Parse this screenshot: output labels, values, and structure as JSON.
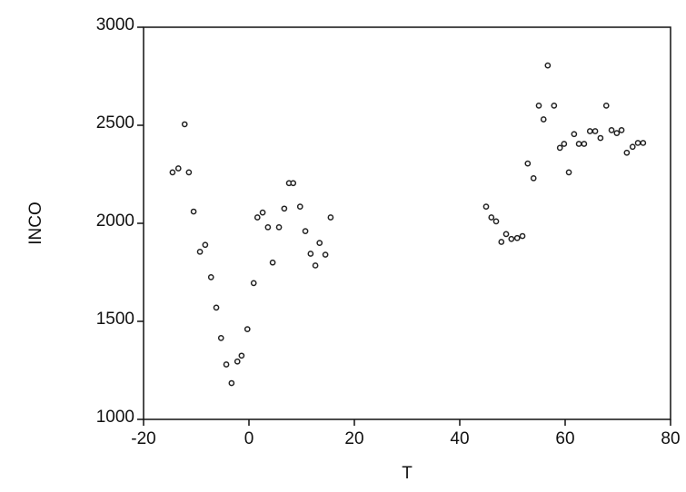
{
  "chart_data": {
    "type": "scatter",
    "x_label": "T",
    "y_label": "INCO",
    "xlim": [
      -20,
      80
    ],
    "xticks": [
      -20,
      0,
      20,
      40,
      60,
      80
    ],
    "ylim": [
      1000,
      3000
    ],
    "yticks": [
      1000,
      1500,
      2000,
      2500,
      3000
    ],
    "color": "#222222",
    "x": [
      -14.5,
      -13.4,
      -12.2,
      -11.4,
      -10.5,
      -9.3,
      -8.3,
      -7.2,
      -6.2,
      -5.3,
      -4.3,
      -3.3,
      -2.2,
      -1.4,
      -0.3,
      0.9,
      1.6,
      2.6,
      3.6,
      4.5,
      5.7,
      6.7,
      7.6,
      8.4,
      9.7,
      10.7,
      11.7,
      12.6,
      13.4,
      14.5,
      15.5,
      45.0,
      46.0,
      46.9,
      47.9,
      48.8,
      49.8,
      50.9,
      51.9,
      52.9,
      54.0,
      55.0,
      55.9,
      56.7,
      57.9,
      59.0,
      59.8,
      60.7,
      61.7,
      62.6,
      63.6,
      64.7,
      65.7,
      66.7,
      67.8,
      68.8,
      69.8,
      70.7,
      71.7,
      72.8,
      73.8,
      74.8
    ],
    "y": [
      2260,
      2280,
      2505,
      2260,
      2060,
      1855,
      1890,
      1725,
      1570,
      1415,
      1280,
      1185,
      1295,
      1325,
      1460,
      1695,
      2030,
      2055,
      1980,
      1800,
      1980,
      2075,
      2205,
      2205,
      2085,
      1960,
      1845,
      1785,
      1900,
      1840,
      2030,
      2085,
      2030,
      2010,
      1905,
      1945,
      1920,
      1925,
      1935,
      2305,
      2230,
      2600,
      2530,
      2805,
      2600,
      2385,
      2405,
      2260,
      2455,
      2405,
      2405,
      2470,
      2470,
      2435,
      2600,
      2475,
      2460,
      2475,
      2360,
      2390,
      2410,
      2410
    ]
  }
}
